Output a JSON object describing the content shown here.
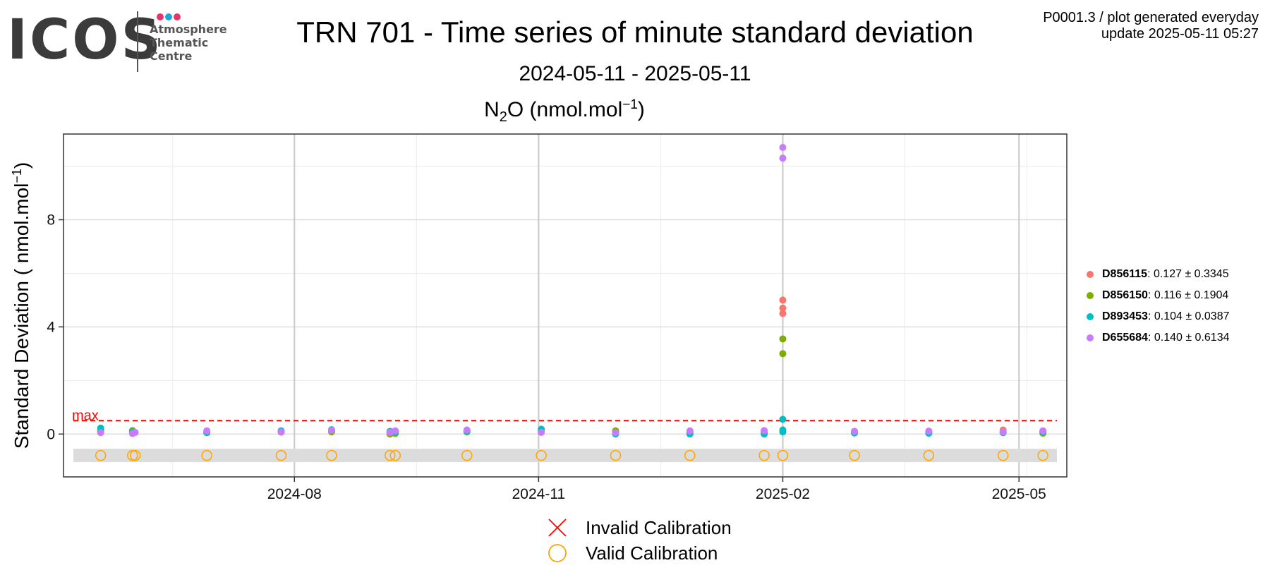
{
  "logo": {
    "word": "ICOS",
    "line1": "Atmosphere",
    "line2": "Thematic",
    "line3": "Centre",
    "dot_colors": [
      "#e8336d",
      "#1fa6e0",
      "#e8336d"
    ]
  },
  "header": {
    "title": "TRN 701 - Time series of minute standard deviation",
    "subtitle": "2024-05-11 - 2025-05-11",
    "panel_title_species": "N",
    "panel_title_sub": "2",
    "panel_title_rest": "O (nmol.mol",
    "panel_title_sup": "−1",
    "panel_title_end": ")",
    "top_right_line1": "P0001.3 / plot generated everyday",
    "top_right_line2": "update  2025-05-11 05:27"
  },
  "chart_data": {
    "type": "scatter",
    "title": "TRN 701 - Time series of minute standard deviation",
    "subtitle": "2024-05-11 - 2025-05-11",
    "xlabel": "",
    "ylabel_main": "Standard Deviation ( nmol.mol",
    "ylabel_sup": "−1",
    "ylabel_end": ")",
    "xlim": [
      "2024-05-06",
      "2025-05-19"
    ],
    "ylim": [
      -1.6,
      11.2
    ],
    "x_ticks": [
      "2024-08-01",
      "2024-11-01",
      "2025-02-01",
      "2025-05-01"
    ],
    "x_tick_labels": [
      "2024-08",
      "2024-11",
      "2025-02",
      "2025-05"
    ],
    "y_ticks": [
      0,
      4,
      8
    ],
    "y_tick_labels": [
      "0",
      "4",
      "8"
    ],
    "grid": true,
    "max_line": {
      "label": "max",
      "value": 0.5,
      "color": "#ff0000"
    },
    "calibration_band": {
      "from": -1.05,
      "to": -0.55,
      "color": "#dcdcdc"
    },
    "calibration_marker_y": -0.8,
    "calibration_dates": [
      "2024-05-20",
      "2024-06-01",
      "2024-06-02",
      "2024-06-29",
      "2024-07-27",
      "2024-08-15",
      "2024-09-06",
      "2024-09-08",
      "2024-10-05",
      "2024-11-02",
      "2024-11-30",
      "2024-12-28",
      "2025-01-25",
      "2025-02-01",
      "2025-02-28",
      "2025-03-28",
      "2025-04-25",
      "2025-05-10"
    ],
    "series": [
      {
        "name": "D856115",
        "stats": "0.127 ± 0.3345",
        "color": "#f8766d",
        "points": [
          [
            "2024-05-20",
            0.12
          ],
          [
            "2024-06-01",
            0.1
          ],
          [
            "2024-06-29",
            0.08
          ],
          [
            "2024-07-27",
            0.09
          ],
          [
            "2024-08-15",
            0.11
          ],
          [
            "2024-09-06",
            0.05
          ],
          [
            "2024-09-08",
            0.1
          ],
          [
            "2024-10-05",
            0.12
          ],
          [
            "2024-11-02",
            0.1
          ],
          [
            "2024-11-30",
            0.08
          ],
          [
            "2024-12-28",
            0.07
          ],
          [
            "2025-01-25",
            0.09
          ],
          [
            "2025-02-01",
            5.0
          ],
          [
            "2025-02-01",
            4.7
          ],
          [
            "2025-02-01",
            4.5
          ],
          [
            "2025-02-28",
            0.1
          ],
          [
            "2025-03-28",
            0.09
          ],
          [
            "2025-04-25",
            0.15
          ],
          [
            "2025-05-10",
            0.1
          ]
        ]
      },
      {
        "name": "D856150",
        "stats": "0.116 ± 0.1904",
        "color": "#7cae00",
        "points": [
          [
            "2024-05-20",
            0.1
          ],
          [
            "2024-06-01",
            0.13
          ],
          [
            "2024-06-29",
            0.06
          ],
          [
            "2024-07-27",
            0.07
          ],
          [
            "2024-08-15",
            0.08
          ],
          [
            "2024-09-06",
            0.0
          ],
          [
            "2024-09-08",
            0.02
          ],
          [
            "2024-10-05",
            0.08
          ],
          [
            "2024-11-02",
            0.09
          ],
          [
            "2024-11-30",
            0.12
          ],
          [
            "2024-12-28",
            0.06
          ],
          [
            "2025-01-25",
            0.07
          ],
          [
            "2025-02-01",
            3.55
          ],
          [
            "2025-02-01",
            3.0
          ],
          [
            "2025-02-28",
            0.05
          ],
          [
            "2025-03-28",
            0.06
          ],
          [
            "2025-04-25",
            0.08
          ],
          [
            "2025-05-10",
            0.03
          ]
        ]
      },
      {
        "name": "D893453",
        "stats": "0.104 ± 0.0387",
        "color": "#00bfc4",
        "points": [
          [
            "2024-05-20",
            0.22
          ],
          [
            "2024-06-01",
            0.08
          ],
          [
            "2024-06-29",
            0.05
          ],
          [
            "2024-07-27",
            0.12
          ],
          [
            "2024-08-15",
            0.16
          ],
          [
            "2024-09-06",
            0.1
          ],
          [
            "2024-09-08",
            0.06
          ],
          [
            "2024-10-05",
            0.1
          ],
          [
            "2024-11-02",
            0.18
          ],
          [
            "2024-11-30",
            0.0
          ],
          [
            "2024-12-28",
            0.0
          ],
          [
            "2025-01-25",
            0.0
          ],
          [
            "2025-02-01",
            0.55
          ],
          [
            "2025-02-01",
            0.15
          ],
          [
            "2025-02-01",
            0.08
          ],
          [
            "2025-02-28",
            0.04
          ],
          [
            "2025-03-28",
            0.03
          ],
          [
            "2025-04-25",
            0.05
          ],
          [
            "2025-05-10",
            0.08
          ]
        ]
      },
      {
        "name": "D655684",
        "stats": "0.140 ± 0.6134",
        "color": "#c77cff",
        "points": [
          [
            "2024-05-20",
            0.05
          ],
          [
            "2024-06-01",
            0.02
          ],
          [
            "2024-06-02",
            0.06
          ],
          [
            "2024-06-29",
            0.12
          ],
          [
            "2024-07-27",
            0.08
          ],
          [
            "2024-08-15",
            0.14
          ],
          [
            "2024-09-06",
            0.06
          ],
          [
            "2024-09-08",
            0.12
          ],
          [
            "2024-10-05",
            0.15
          ],
          [
            "2024-11-02",
            0.06
          ],
          [
            "2024-11-30",
            0.05
          ],
          [
            "2024-12-28",
            0.12
          ],
          [
            "2025-01-25",
            0.13
          ],
          [
            "2025-02-01",
            10.7
          ],
          [
            "2025-02-01",
            10.3
          ],
          [
            "2025-02-28",
            0.1
          ],
          [
            "2025-03-28",
            0.11
          ],
          [
            "2025-04-25",
            0.08
          ],
          [
            "2025-05-10",
            0.12
          ]
        ]
      }
    ]
  },
  "bottom_legend": {
    "invalid_label": "Invalid Calibration",
    "valid_label": "Valid Calibration",
    "invalid_color": "#ff0000",
    "valid_color": "#ffa500"
  }
}
